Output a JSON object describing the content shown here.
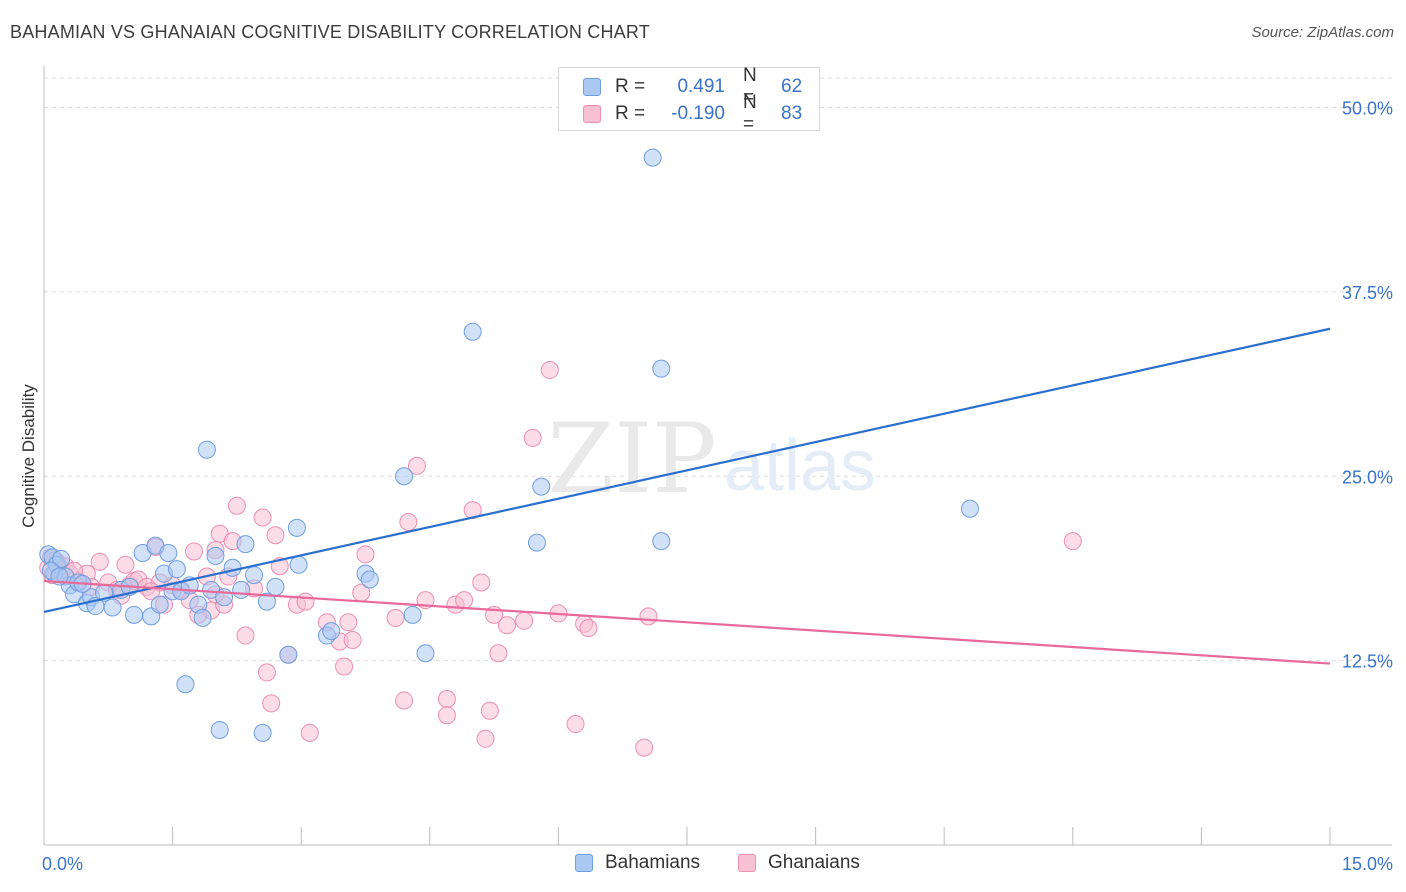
{
  "header": {
    "title": "BAHAMIAN VS GHANAIAN COGNITIVE DISABILITY CORRELATION CHART",
    "source": "Source: ZipAtlas.com"
  },
  "watermark": {
    "zip": "ZIP",
    "atlas": "atlas"
  },
  "legend_top": {
    "rows": [
      {
        "r_label": "R =",
        "r_value": "0.491",
        "n_label": "N =",
        "n_value": "62",
        "color": "#a9c9f3",
        "border": "#6f9fe0"
      },
      {
        "r_label": "R =",
        "r_value": "-0.190",
        "n_label": "N =",
        "n_value": "83",
        "color": "#f8c0d3",
        "border": "#ee8fb1"
      }
    ]
  },
  "legend_bottom": {
    "items": [
      {
        "label": "Bahamians",
        "color": "#a9c9f3",
        "border": "#6f9fe0"
      },
      {
        "label": "Ghanaians",
        "color": "#f8c0d3",
        "border": "#ee8fb1"
      }
    ]
  },
  "chart_data": {
    "type": "scatter",
    "title": "BAHAMIAN VS GHANAIAN COGNITIVE DISABILITY CORRELATION CHART",
    "xlabel": "",
    "ylabel": "Cognitive Disability",
    "xlim": [
      0,
      15
    ],
    "ylim": [
      0,
      52
    ],
    "x_tick_labels": [
      {
        "value": 0,
        "label": "0.0%"
      },
      {
        "value": 15,
        "label": "15.0%"
      }
    ],
    "y_tick_labels": [
      {
        "value": 12.5,
        "label": "12.5%"
      },
      {
        "value": 25,
        "label": "25.0%"
      },
      {
        "value": 37.5,
        "label": "37.5%"
      },
      {
        "value": 50,
        "label": "50.0%"
      }
    ],
    "grid": true,
    "legend_position": "bottom",
    "series": [
      {
        "name": "Bahamians",
        "color": "#a9c9f3",
        "edge": "#6f9fe0",
        "line_color": "#2a6fd0",
        "trend": {
          "x": [
            0,
            15
          ],
          "y": [
            15.8,
            35.0
          ]
        },
        "points": [
          [
            0.05,
            19.7
          ],
          [
            0.1,
            19.5
          ],
          [
            0.12,
            18.4
          ],
          [
            0.15,
            19.0
          ],
          [
            0.2,
            19.4
          ],
          [
            0.25,
            18.2
          ],
          [
            0.3,
            17.6
          ],
          [
            0.35,
            17.0
          ],
          [
            0.4,
            17.8
          ],
          [
            0.5,
            16.4
          ],
          [
            0.55,
            16.8
          ],
          [
            0.6,
            16.2
          ],
          [
            0.7,
            17.1
          ],
          [
            0.8,
            16.1
          ],
          [
            0.9,
            17.3
          ],
          [
            1.0,
            17.5
          ],
          [
            1.05,
            15.6
          ],
          [
            1.15,
            19.8
          ],
          [
            1.25,
            15.5
          ],
          [
            1.3,
            20.3
          ],
          [
            1.35,
            16.3
          ],
          [
            1.4,
            18.4
          ],
          [
            1.45,
            19.8
          ],
          [
            1.5,
            17.2
          ],
          [
            1.55,
            18.7
          ],
          [
            1.6,
            17.2
          ],
          [
            1.65,
            10.9
          ],
          [
            1.7,
            17.6
          ],
          [
            1.8,
            16.3
          ],
          [
            1.85,
            15.4
          ],
          [
            1.9,
            26.8
          ],
          [
            1.95,
            17.3
          ],
          [
            2.0,
            19.6
          ],
          [
            2.05,
            7.8
          ],
          [
            2.1,
            16.8
          ],
          [
            2.2,
            18.8
          ],
          [
            2.3,
            17.3
          ],
          [
            2.35,
            20.4
          ],
          [
            2.45,
            18.3
          ],
          [
            2.55,
            7.6
          ],
          [
            2.6,
            16.5
          ],
          [
            2.7,
            17.5
          ],
          [
            2.85,
            12.9
          ],
          [
            2.95,
            21.5
          ],
          [
            2.97,
            19.0
          ],
          [
            3.3,
            14.2
          ],
          [
            3.35,
            14.5
          ],
          [
            3.75,
            18.4
          ],
          [
            3.8,
            18.0
          ],
          [
            4.2,
            25.0
          ],
          [
            4.3,
            15.6
          ],
          [
            4.45,
            13.0
          ],
          [
            5.0,
            34.8
          ],
          [
            5.75,
            20.5
          ],
          [
            5.8,
            24.3
          ],
          [
            7.1,
            46.6
          ],
          [
            7.2,
            32.3
          ],
          [
            7.2,
            20.6
          ],
          [
            10.8,
            22.8
          ],
          [
            0.08,
            18.6
          ],
          [
            0.18,
            18.2
          ],
          [
            0.45,
            17.7
          ]
        ]
      },
      {
        "name": "Ghanaians",
        "color": "#f8c0d3",
        "edge": "#ee8fb1",
        "line_color": "#e8699a",
        "trend": {
          "x": [
            0,
            15
          ],
          "y": [
            17.9,
            12.3
          ]
        },
        "points": [
          [
            0.05,
            18.8
          ],
          [
            0.08,
            19.5
          ],
          [
            0.1,
            18.3
          ],
          [
            0.15,
            19.2
          ],
          [
            0.2,
            18.7
          ],
          [
            0.25,
            18.9
          ],
          [
            0.3,
            18.4
          ],
          [
            0.4,
            17.9
          ],
          [
            0.5,
            18.4
          ],
          [
            0.55,
            17.5
          ],
          [
            0.65,
            19.2
          ],
          [
            0.75,
            17.8
          ],
          [
            0.85,
            17.3
          ],
          [
            0.9,
            16.9
          ],
          [
            0.95,
            19.0
          ],
          [
            1.0,
            17.6
          ],
          [
            1.05,
            17.9
          ],
          [
            1.1,
            18.0
          ],
          [
            1.2,
            17.5
          ],
          [
            1.3,
            20.2
          ],
          [
            1.35,
            17.8
          ],
          [
            1.4,
            16.3
          ],
          [
            1.5,
            17.6
          ],
          [
            1.6,
            17.3
          ],
          [
            1.7,
            16.6
          ],
          [
            1.75,
            19.9
          ],
          [
            1.8,
            15.6
          ],
          [
            1.9,
            18.2
          ],
          [
            1.95,
            15.9
          ],
          [
            2.0,
            20.0
          ],
          [
            2.05,
            21.1
          ],
          [
            2.1,
            16.3
          ],
          [
            2.15,
            18.2
          ],
          [
            2.2,
            20.6
          ],
          [
            2.25,
            23.0
          ],
          [
            2.35,
            14.2
          ],
          [
            2.45,
            17.4
          ],
          [
            2.55,
            22.2
          ],
          [
            2.6,
            11.7
          ],
          [
            2.65,
            9.6
          ],
          [
            2.7,
            21.0
          ],
          [
            2.75,
            18.9
          ],
          [
            2.85,
            12.9
          ],
          [
            2.95,
            16.3
          ],
          [
            3.05,
            16.5
          ],
          [
            3.1,
            7.6
          ],
          [
            3.3,
            15.1
          ],
          [
            3.45,
            13.8
          ],
          [
            3.5,
            12.1
          ],
          [
            3.55,
            15.1
          ],
          [
            3.6,
            13.9
          ],
          [
            3.7,
            17.1
          ],
          [
            3.75,
            19.7
          ],
          [
            4.1,
            15.4
          ],
          [
            4.2,
            9.8
          ],
          [
            4.25,
            21.9
          ],
          [
            4.35,
            25.7
          ],
          [
            4.45,
            16.6
          ],
          [
            4.7,
            9.9
          ],
          [
            4.7,
            8.8
          ],
          [
            4.8,
            16.3
          ],
          [
            4.9,
            16.6
          ],
          [
            5.0,
            22.7
          ],
          [
            5.1,
            17.8
          ],
          [
            5.15,
            7.2
          ],
          [
            5.2,
            9.1
          ],
          [
            5.25,
            15.6
          ],
          [
            5.3,
            13.0
          ],
          [
            5.4,
            14.9
          ],
          [
            5.6,
            15.2
          ],
          [
            5.7,
            27.6
          ],
          [
            5.9,
            32.2
          ],
          [
            6.0,
            15.7
          ],
          [
            6.2,
            8.2
          ],
          [
            6.3,
            15.0
          ],
          [
            6.35,
            14.7
          ],
          [
            7.0,
            6.6
          ],
          [
            7.05,
            15.5
          ],
          [
            12.0,
            20.6
          ],
          [
            0.12,
            19.3
          ],
          [
            0.35,
            18.6
          ],
          [
            1.25,
            17.2
          ],
          [
            2.0,
            17.0
          ]
        ]
      }
    ]
  }
}
